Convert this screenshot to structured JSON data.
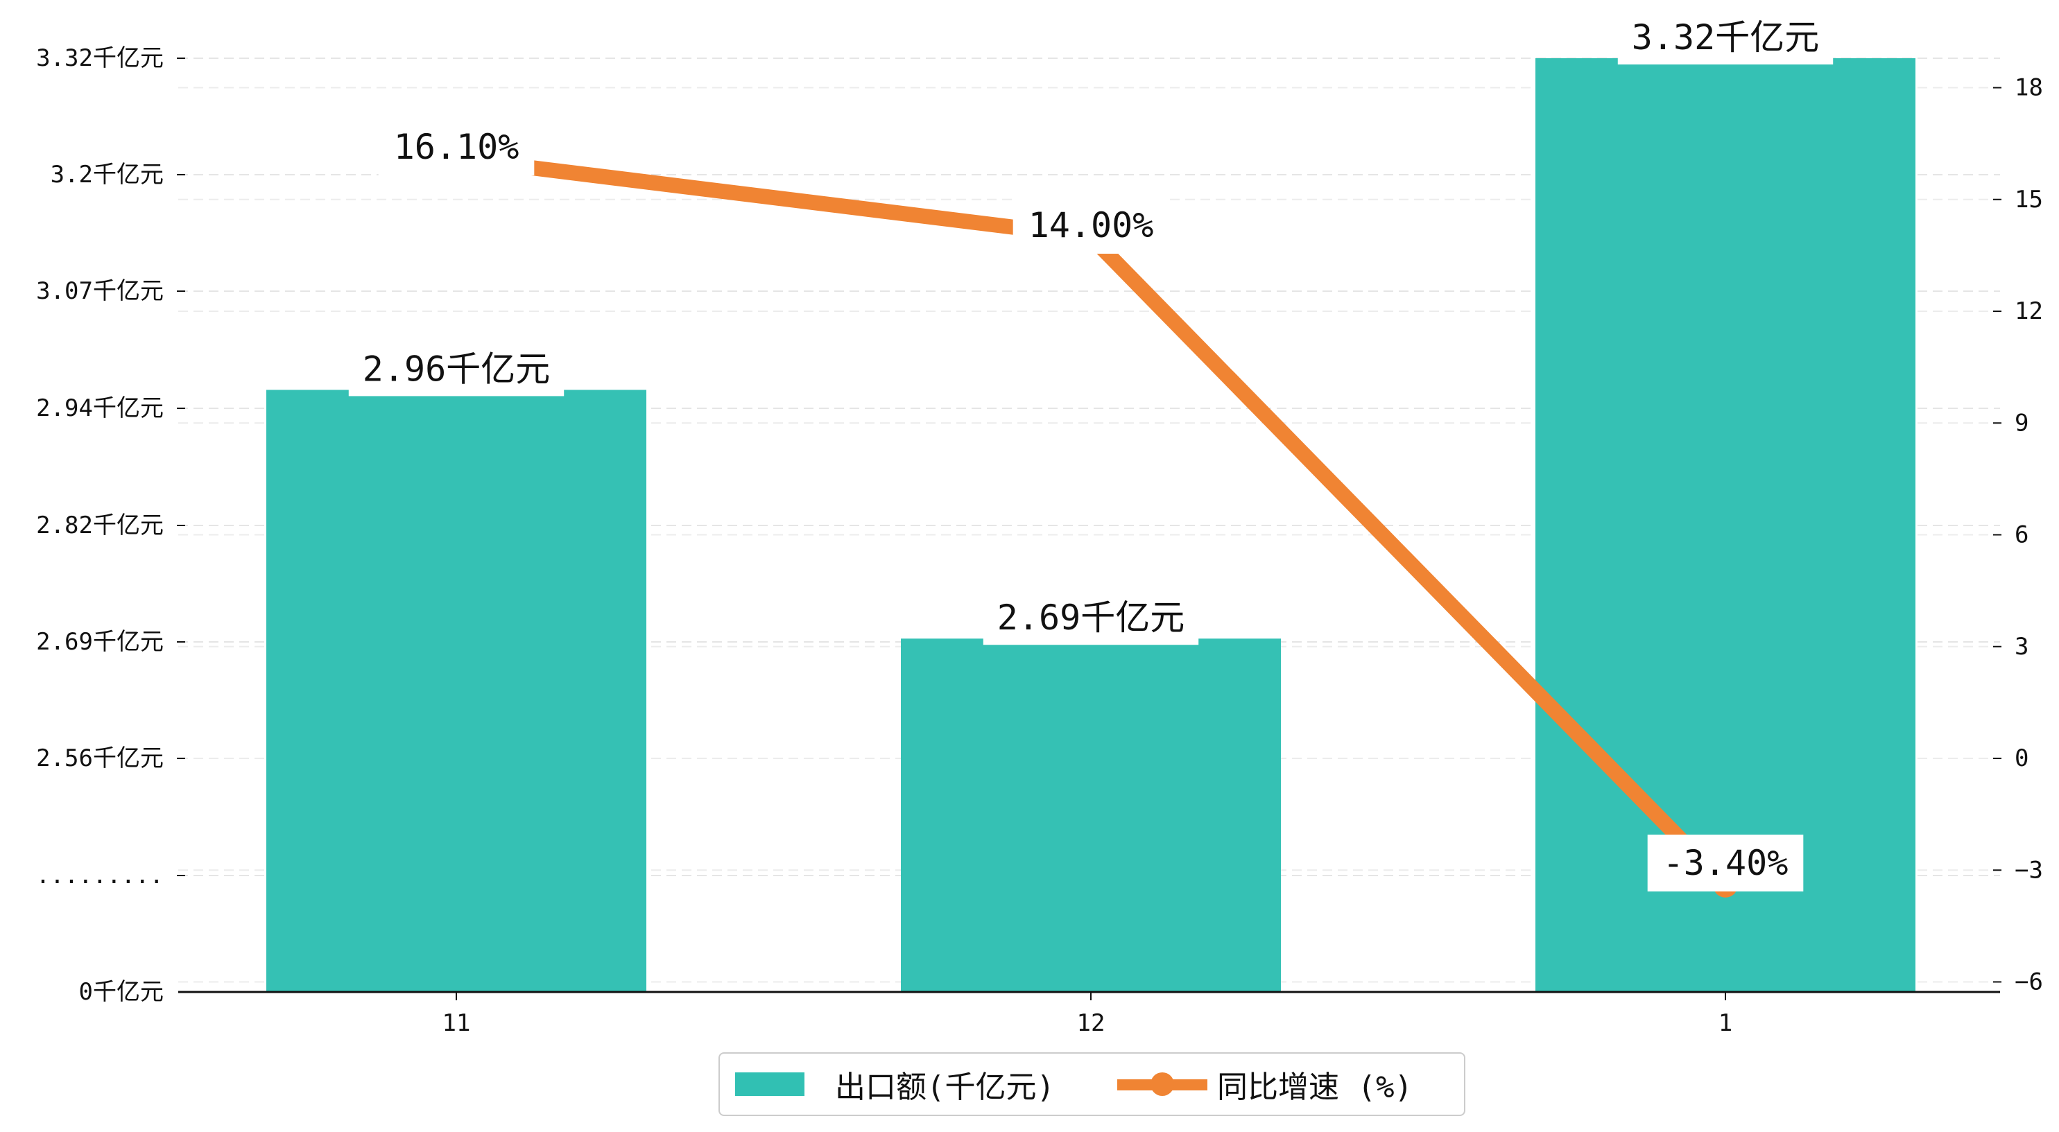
{
  "chart_data": {
    "type": "bar",
    "categories": [
      "11",
      "12",
      "1"
    ],
    "series": [
      {
        "name": "出口额(千亿元)",
        "type": "bar",
        "axis": "left",
        "values": [
          2.96,
          2.69,
          3.32
        ],
        "labels": [
          "2.96千亿元",
          "2.69千亿元",
          "3.32千亿元"
        ],
        "color": "#31C0B3"
      },
      {
        "name": "同比增速 (%)",
        "type": "line",
        "axis": "right",
        "values": [
          16.1,
          14.0,
          -3.4
        ],
        "labels": [
          "16.10%",
          "14.00%",
          "-3.40%"
        ],
        "color": "#F08433"
      }
    ],
    "left_axis": {
      "type": "broken",
      "tick_labels": [
        "0千亿元",
        ".........",
        "2.56千亿元",
        "2.69千亿元",
        "2.82千亿元",
        "2.94千亿元",
        "3.07千亿元",
        "3.2千亿元",
        "3.32千亿元"
      ],
      "scale_break": true
    },
    "right_axis": {
      "ticks": [
        -6,
        -3,
        0,
        3,
        6,
        9,
        12,
        15,
        18
      ],
      "tick_labels": [
        "−6",
        "−3",
        "0",
        "3",
        "6",
        "9",
        "12",
        "15",
        "18"
      ],
      "range": [
        -6.6,
        19.0
      ]
    },
    "grid": "horizontal-dashed",
    "legend": {
      "position": "bottom-center"
    }
  }
}
